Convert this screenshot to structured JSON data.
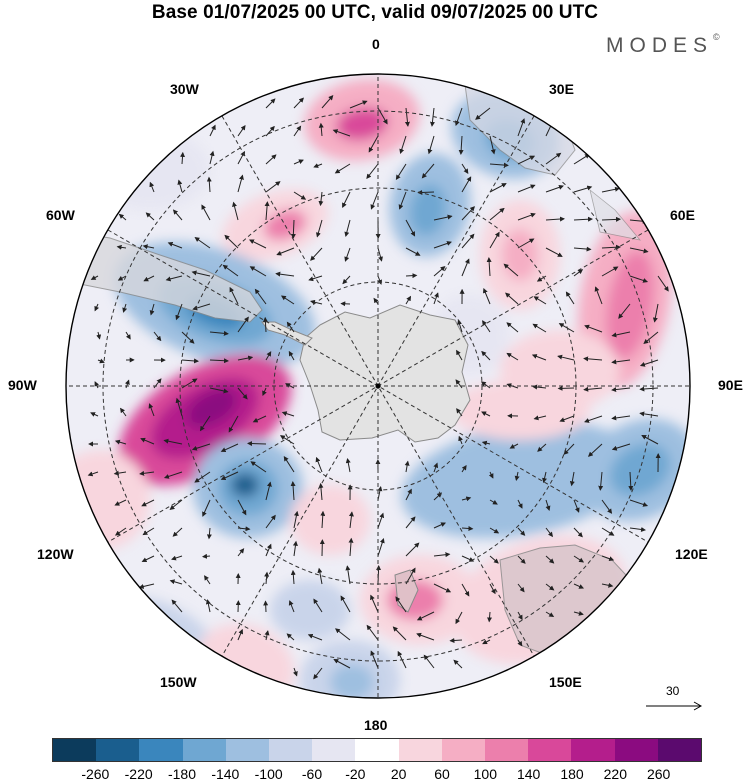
{
  "title": "Base 01/07/2025 00 UTC, valid 09/07/2025 00 UTC",
  "brand": "MODES",
  "brand_mark": "©",
  "longitude_labels": {
    "top": "0",
    "top_left": "30W",
    "top_right": "30E",
    "upper_left": "60W",
    "upper_right": "60E",
    "left": "90W",
    "right": "90E",
    "lower_left": "120W",
    "lower_right": "120E",
    "bottom_left": "150W",
    "bottom_right": "150E",
    "bottom": "180"
  },
  "reference_vector": "30",
  "colorbar": {
    "colors": [
      "#0c3b5c",
      "#1a5e8e",
      "#3a86bd",
      "#6fa7d2",
      "#9ebfe0",
      "#c9d4ea",
      "#e6e6f2",
      "#ffffff",
      "#f8d6de",
      "#f5aec4",
      "#ec7fac",
      "#d9489a",
      "#b41e8c",
      "#8b0b80",
      "#5b0a6e"
    ],
    "ticks": [
      "-260",
      "-220",
      "-180",
      "-140",
      "-100",
      "-60",
      "-20",
      "20",
      "60",
      "100",
      "140",
      "180",
      "220",
      "260"
    ]
  },
  "colors": {
    "land": "#e3e3e3",
    "coast": "#8a8a8a",
    "grid": "#333333"
  }
}
